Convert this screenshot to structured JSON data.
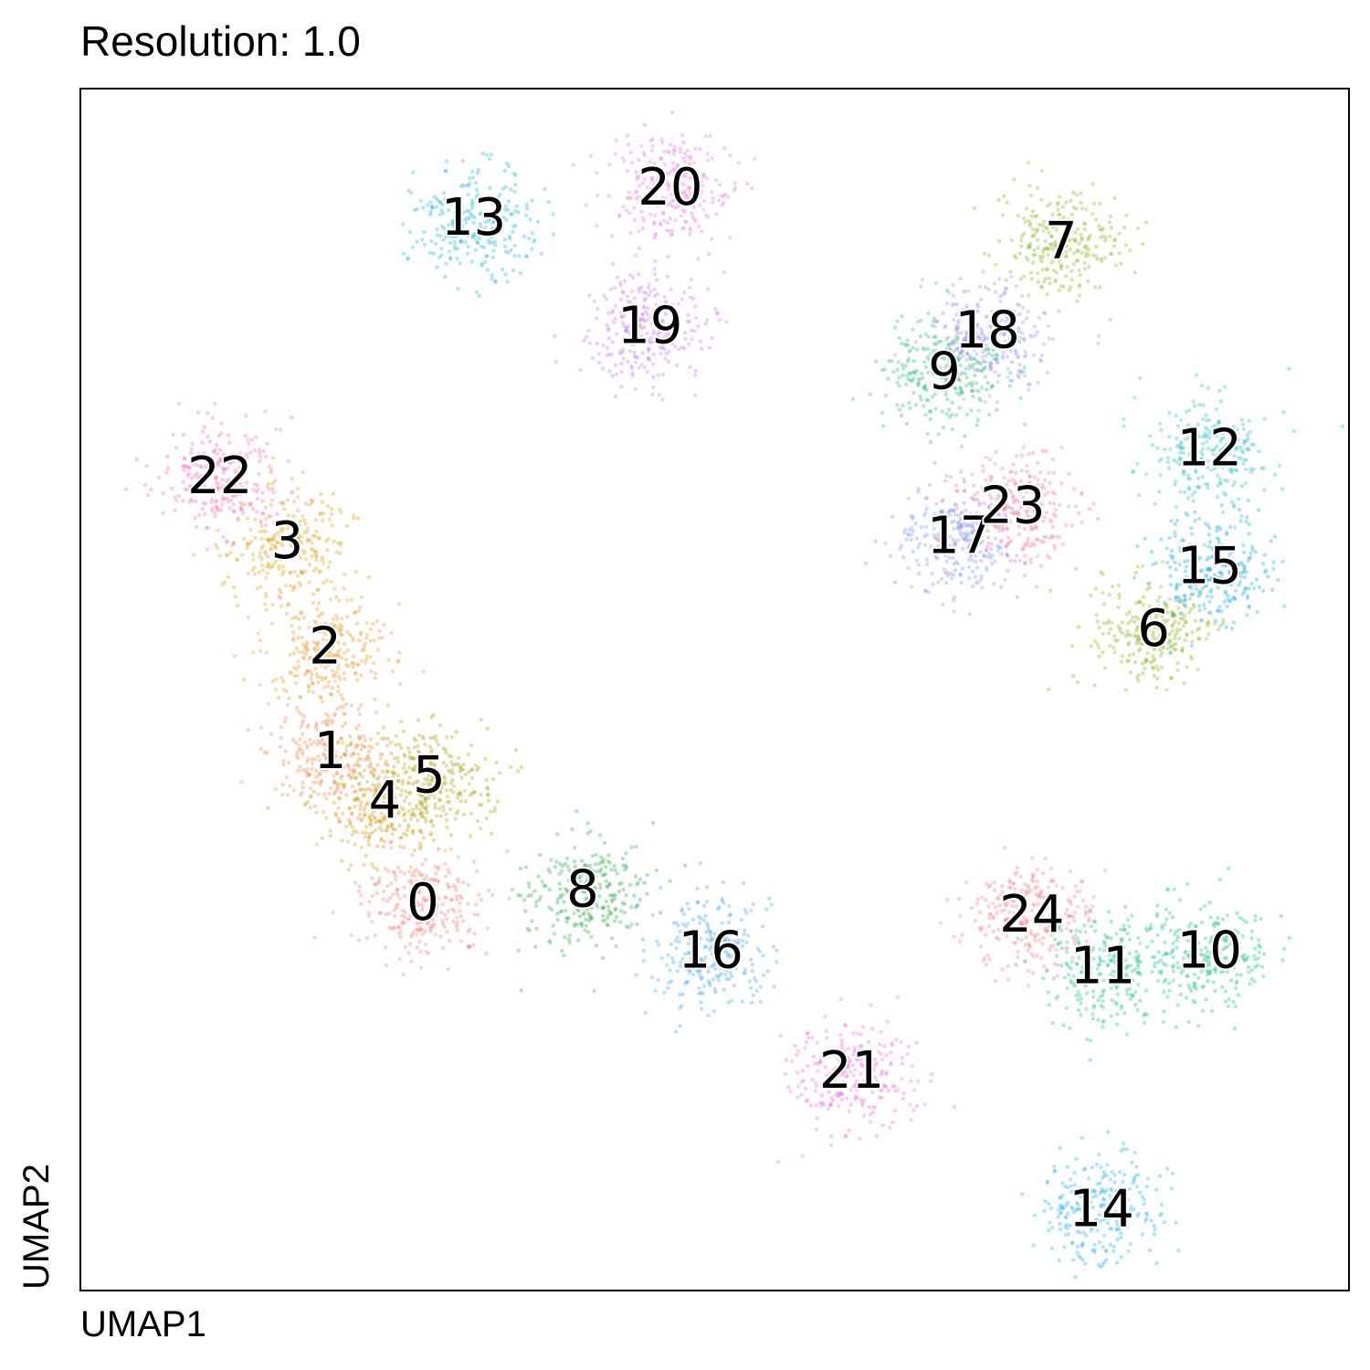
{
  "chart_data": {
    "type": "scatter",
    "title": "Resolution: 1.0",
    "xlabel": "UMAP1",
    "ylabel": "UMAP2",
    "xlim": [
      0,
      100
    ],
    "ylim": [
      0,
      100
    ],
    "grid": false,
    "legend": "none",
    "clusters": [
      {
        "label": "0",
        "x": 27.0,
        "y": 32.0,
        "color": "#f0847c"
      },
      {
        "label": "1",
        "x": 19.7,
        "y": 44.6,
        "color": "#e98e55"
      },
      {
        "label": "2",
        "x": 19.3,
        "y": 53.3,
        "color": "#e59c2c"
      },
      {
        "label": "3",
        "x": 16.3,
        "y": 62.1,
        "color": "#d9a21c"
      },
      {
        "label": "4",
        "x": 24.0,
        "y": 40.5,
        "color": "#cf9a12"
      },
      {
        "label": "5",
        "x": 27.5,
        "y": 42.6,
        "color": "#a7a217"
      },
      {
        "label": "6",
        "x": 84.6,
        "y": 54.8,
        "color": "#8cb51e"
      },
      {
        "label": "7",
        "x": 77.3,
        "y": 87.0,
        "color": "#86b627"
      },
      {
        "label": "8",
        "x": 39.6,
        "y": 33.1,
        "color": "#35a84a"
      },
      {
        "label": "9",
        "x": 68.1,
        "y": 76.2,
        "color": "#2bbb7c"
      },
      {
        "label": "10",
        "x": 89.0,
        "y": 28.0,
        "color": "#1fc18b"
      },
      {
        "label": "11",
        "x": 80.6,
        "y": 26.7,
        "color": "#22c093"
      },
      {
        "label": "12",
        "x": 89.0,
        "y": 69.8,
        "color": "#2fbfc0"
      },
      {
        "label": "13",
        "x": 31.0,
        "y": 89.0,
        "color": "#27b8cc"
      },
      {
        "label": "14",
        "x": 80.5,
        "y": 6.5,
        "color": "#2cb1e2"
      },
      {
        "label": "15",
        "x": 89.0,
        "y": 60.0,
        "color": "#22a9e6"
      },
      {
        "label": "16",
        "x": 49.7,
        "y": 28.0,
        "color": "#4aa6ee"
      },
      {
        "label": "17",
        "x": 69.3,
        "y": 62.5,
        "color": "#7e9cf0"
      },
      {
        "label": "18",
        "x": 71.5,
        "y": 79.6,
        "color": "#a493f2"
      },
      {
        "label": "19",
        "x": 44.9,
        "y": 80.0,
        "color": "#c77ef0"
      },
      {
        "label": "20",
        "x": 46.5,
        "y": 91.5,
        "color": "#e07fe0"
      },
      {
        "label": "21",
        "x": 60.8,
        "y": 18.0,
        "color": "#ea73d6"
      },
      {
        "label": "22",
        "x": 11.0,
        "y": 67.5,
        "color": "#f070bd"
      },
      {
        "label": "23",
        "x": 73.5,
        "y": 65.0,
        "color": "#f27aa2"
      },
      {
        "label": "24",
        "x": 75.0,
        "y": 31.0,
        "color": "#f6818a"
      }
    ]
  }
}
